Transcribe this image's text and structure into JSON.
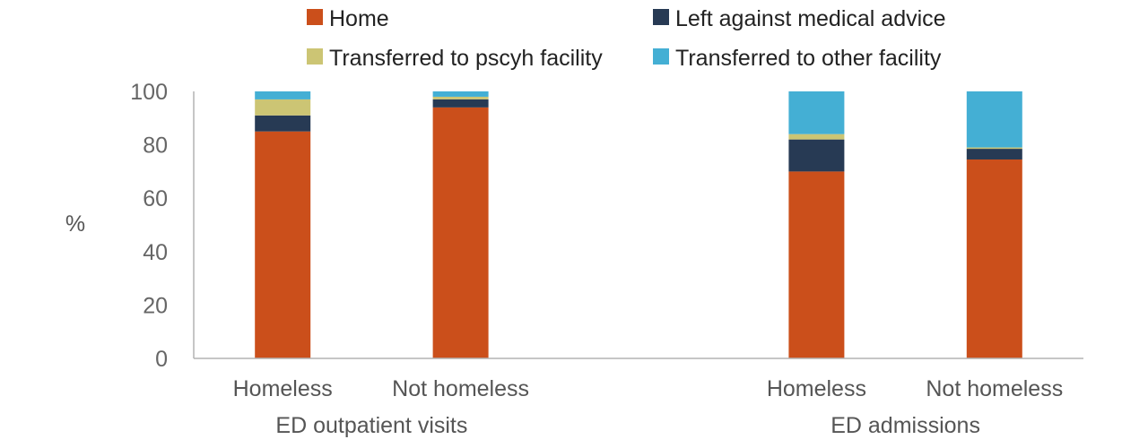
{
  "chart_data": {
    "type": "bar",
    "stacked": true,
    "ylabel": "%",
    "ylim": [
      0,
      100
    ],
    "yticks": [
      0,
      20,
      40,
      60,
      80,
      100
    ],
    "groups": [
      {
        "label": "ED outpatient visits",
        "categories": [
          "Homeless",
          "Not homeless"
        ]
      },
      {
        "label": "ED admissions",
        "categories": [
          "Homeless",
          "Not homeless"
        ]
      }
    ],
    "categories": [
      "Homeless",
      "Not homeless",
      "Homeless",
      "Not homeless"
    ],
    "series": [
      {
        "name": "Home",
        "color": "#cb4f1b",
        "values": [
          85,
          94,
          70,
          74.5
        ]
      },
      {
        "name": "Left against medical advice",
        "color": "#273a54",
        "values": [
          6,
          3,
          12,
          4
        ]
      },
      {
        "name": "Transferred to pscyh facility",
        "color": "#ccc574",
        "values": [
          6,
          1,
          2,
          0.5
        ]
      },
      {
        "name": "Transferred to other facility",
        "color": "#44afd4",
        "values": [
          3,
          2,
          16,
          21
        ]
      }
    ],
    "legend_position": "top",
    "grid": false
  }
}
